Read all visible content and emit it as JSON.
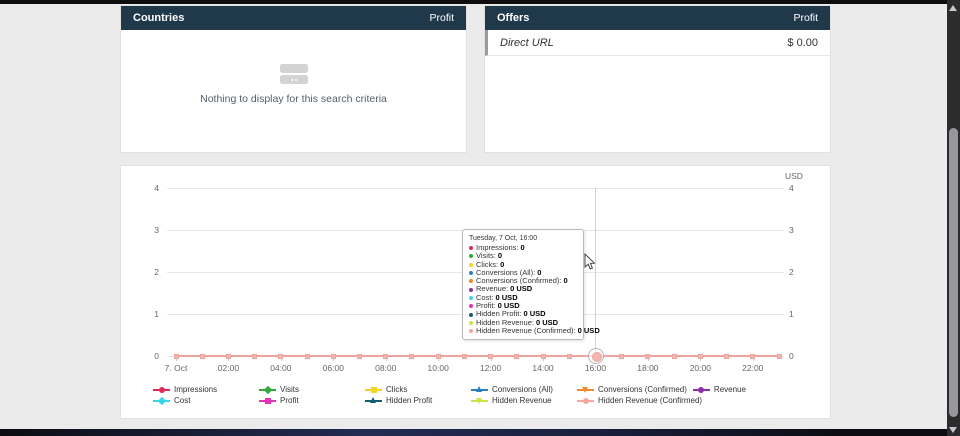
{
  "colors": {
    "panel_header_bg": "#20394a",
    "page_bg": "#ebebeb",
    "visible_line": "#eca49b",
    "visible_marker_fill": "#f4b6af"
  },
  "panels": {
    "countries": {
      "title": "Countries",
      "header_right": "Profit",
      "empty_text": "Nothing to display for this search criteria"
    },
    "offers": {
      "title": "Offers",
      "header_right": "Profit",
      "rows": [
        {
          "name": "Direct URL",
          "profit": "$ 0.00"
        }
      ]
    }
  },
  "chart_data": {
    "type": "line",
    "title": "",
    "y_right_title": "USD",
    "y_ticks": [
      0,
      1,
      2,
      3,
      4
    ],
    "ylim": [
      0,
      4
    ],
    "grid": true,
    "legend_position": "bottom",
    "hours": [
      "00:00",
      "01:00",
      "02:00",
      "03:00",
      "04:00",
      "05:00",
      "06:00",
      "07:00",
      "08:00",
      "09:00",
      "10:00",
      "11:00",
      "12:00",
      "13:00",
      "14:00",
      "15:00",
      "16:00",
      "17:00",
      "18:00",
      "19:00",
      "20:00",
      "21:00",
      "22:00",
      "23:00"
    ],
    "x_tick_labels": [
      "7. Oct",
      "02:00",
      "04:00",
      "06:00",
      "08:00",
      "10:00",
      "12:00",
      "14:00",
      "16:00",
      "18:00",
      "20:00",
      "22:00"
    ],
    "series": [
      {
        "name": "Impressions",
        "color": "#df2a55",
        "marker": "circle",
        "values": [
          0,
          0,
          0,
          0,
          0,
          0,
          0,
          0,
          0,
          0,
          0,
          0,
          0,
          0,
          0,
          0,
          0,
          0,
          0,
          0,
          0,
          0,
          0,
          0
        ]
      },
      {
        "name": "Visits",
        "color": "#2faa3c",
        "marker": "diamond",
        "values": [
          0,
          0,
          0,
          0,
          0,
          0,
          0,
          0,
          0,
          0,
          0,
          0,
          0,
          0,
          0,
          0,
          0,
          0,
          0,
          0,
          0,
          0,
          0,
          0
        ]
      },
      {
        "name": "Clicks",
        "color": "#f6d422",
        "marker": "square",
        "values": [
          0,
          0,
          0,
          0,
          0,
          0,
          0,
          0,
          0,
          0,
          0,
          0,
          0,
          0,
          0,
          0,
          0,
          0,
          0,
          0,
          0,
          0,
          0,
          0
        ]
      },
      {
        "name": "Conversions (All)",
        "color": "#2e7fc2",
        "marker": "triangle",
        "values": [
          0,
          0,
          0,
          0,
          0,
          0,
          0,
          0,
          0,
          0,
          0,
          0,
          0,
          0,
          0,
          0,
          0,
          0,
          0,
          0,
          0,
          0,
          0,
          0
        ]
      },
      {
        "name": "Conversions (Confirmed)",
        "color": "#f08a2e",
        "marker": "triangle-down",
        "values": [
          0,
          0,
          0,
          0,
          0,
          0,
          0,
          0,
          0,
          0,
          0,
          0,
          0,
          0,
          0,
          0,
          0,
          0,
          0,
          0,
          0,
          0,
          0,
          0
        ]
      },
      {
        "name": "Revenue",
        "color": "#8a31a8",
        "marker": "circle",
        "values": [
          0,
          0,
          0,
          0,
          0,
          0,
          0,
          0,
          0,
          0,
          0,
          0,
          0,
          0,
          0,
          0,
          0,
          0,
          0,
          0,
          0,
          0,
          0,
          0
        ]
      },
      {
        "name": "Cost",
        "color": "#3bd6e6",
        "marker": "diamond",
        "values": [
          0,
          0,
          0,
          0,
          0,
          0,
          0,
          0,
          0,
          0,
          0,
          0,
          0,
          0,
          0,
          0,
          0,
          0,
          0,
          0,
          0,
          0,
          0,
          0
        ]
      },
      {
        "name": "Profit",
        "color": "#e930b8",
        "marker": "square",
        "values": [
          0,
          0,
          0,
          0,
          0,
          0,
          0,
          0,
          0,
          0,
          0,
          0,
          0,
          0,
          0,
          0,
          0,
          0,
          0,
          0,
          0,
          0,
          0,
          0
        ]
      },
      {
        "name": "Hidden Profit",
        "color": "#135f70",
        "marker": "triangle",
        "values": [
          0,
          0,
          0,
          0,
          0,
          0,
          0,
          0,
          0,
          0,
          0,
          0,
          0,
          0,
          0,
          0,
          0,
          0,
          0,
          0,
          0,
          0,
          0,
          0
        ]
      },
      {
        "name": "Hidden Revenue",
        "color": "#cfe24b",
        "marker": "triangle-down",
        "values": [
          0,
          0,
          0,
          0,
          0,
          0,
          0,
          0,
          0,
          0,
          0,
          0,
          0,
          0,
          0,
          0,
          0,
          0,
          0,
          0,
          0,
          0,
          0,
          0
        ]
      },
      {
        "name": "Hidden Revenue (Confirmed)",
        "color": "#f5a79d",
        "marker": "circle",
        "values": [
          0,
          0,
          0,
          0,
          0,
          0,
          0,
          0,
          0,
          0,
          0,
          0,
          0,
          0,
          0,
          0,
          0,
          0,
          0,
          0,
          0,
          0,
          0,
          0
        ]
      }
    ],
    "hover_point": {
      "hour_index": 16,
      "time": "16:00"
    },
    "tooltip": {
      "header": "Tuesday, 7 Oct, 16:00",
      "rows": [
        {
          "label": "Impressions",
          "value": "0",
          "color": "#df2a55"
        },
        {
          "label": "Visits",
          "value": "0",
          "color": "#2faa3c"
        },
        {
          "label": "Clicks",
          "value": "0",
          "color": "#f6d422"
        },
        {
          "label": "Conversions (All)",
          "value": "0",
          "color": "#2e7fc2"
        },
        {
          "label": "Conversions (Confirmed)",
          "value": "0",
          "color": "#f08a2e"
        },
        {
          "label": "Revenue",
          "value": "0 USD",
          "color": "#8a31a8"
        },
        {
          "label": "Cost",
          "value": "0 USD",
          "color": "#3bd6e6"
        },
        {
          "label": "Profit",
          "value": "0 USD",
          "color": "#e930b8"
        },
        {
          "label": "Hidden Profit",
          "value": "0 USD",
          "color": "#135f70"
        },
        {
          "label": "Hidden Revenue",
          "value": "0 USD",
          "color": "#cfe24b"
        },
        {
          "label": "Hidden Revenue (Confirmed)",
          "value": "0 USD",
          "color": "#f5a79d"
        }
      ]
    }
  }
}
